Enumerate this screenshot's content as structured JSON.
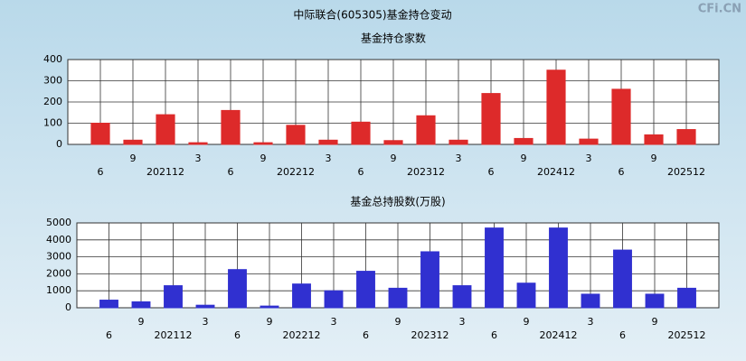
{
  "title": "中际联合(605305)基金持仓变动",
  "watermark": "CFi.CN",
  "chart_data": [
    {
      "type": "bar",
      "title": "基金持仓家数",
      "categories": [
        "6",
        "9",
        "202112",
        "3",
        "6",
        "9",
        "202212",
        "3",
        "6",
        "9",
        "202312",
        "3",
        "6",
        "9",
        "202412",
        "3",
        "6",
        "9",
        "202512"
      ],
      "values": [
        100,
        20,
        140,
        8,
        160,
        8,
        90,
        20,
        105,
        18,
        135,
        20,
        240,
        28,
        350,
        25,
        260,
        45,
        70
      ],
      "color": "#dd2a2a",
      "ylim": [
        0,
        400
      ],
      "yticks": [
        0,
        100,
        200,
        300,
        400
      ],
      "grid": true
    },
    {
      "type": "bar",
      "title": "基金总持股数(万股)",
      "categories": [
        "6",
        "9",
        "202112",
        "3",
        "6",
        "9",
        "202212",
        "3",
        "6",
        "9",
        "202312",
        "3",
        "6",
        "9",
        "202412",
        "3",
        "6",
        "9",
        "202512"
      ],
      "values": [
        450,
        350,
        1300,
        150,
        2250,
        100,
        1400,
        1000,
        2150,
        1150,
        3300,
        1300,
        4700,
        1450,
        4700,
        800,
        3400,
        800,
        1150
      ],
      "color": "#3030d0",
      "ylim": [
        0,
        5000
      ],
      "yticks": [
        0,
        1000,
        2000,
        3000,
        4000,
        5000
      ],
      "grid": true
    }
  ]
}
